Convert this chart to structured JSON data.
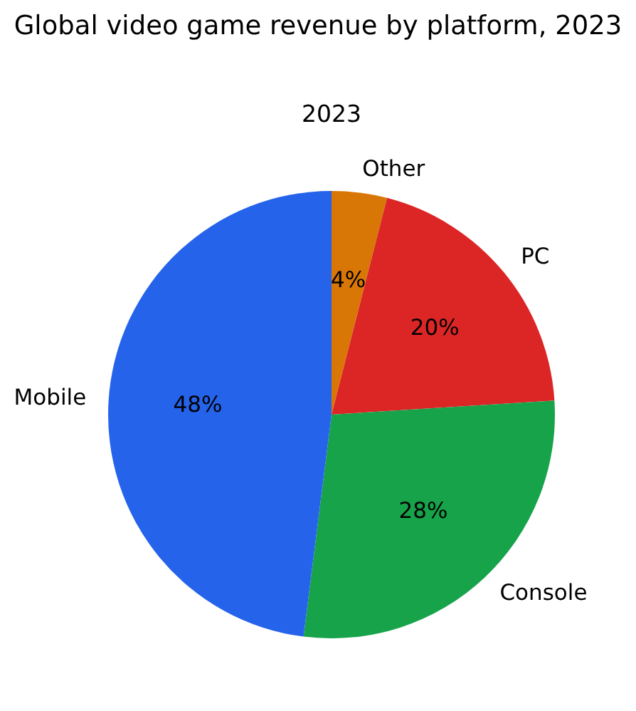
{
  "chart_data": {
    "type": "pie",
    "title": "Global video game revenue by platform, 2023",
    "subtitle": "2023",
    "categories": [
      "Mobile",
      "Console",
      "PC",
      "Other"
    ],
    "values": [
      48,
      28,
      20,
      4
    ],
    "colors": [
      "#2563eb",
      "#16a34a",
      "#dc2626",
      "#d97706"
    ],
    "value_labels": [
      "48%",
      "28%",
      "20%",
      "4%"
    ]
  }
}
